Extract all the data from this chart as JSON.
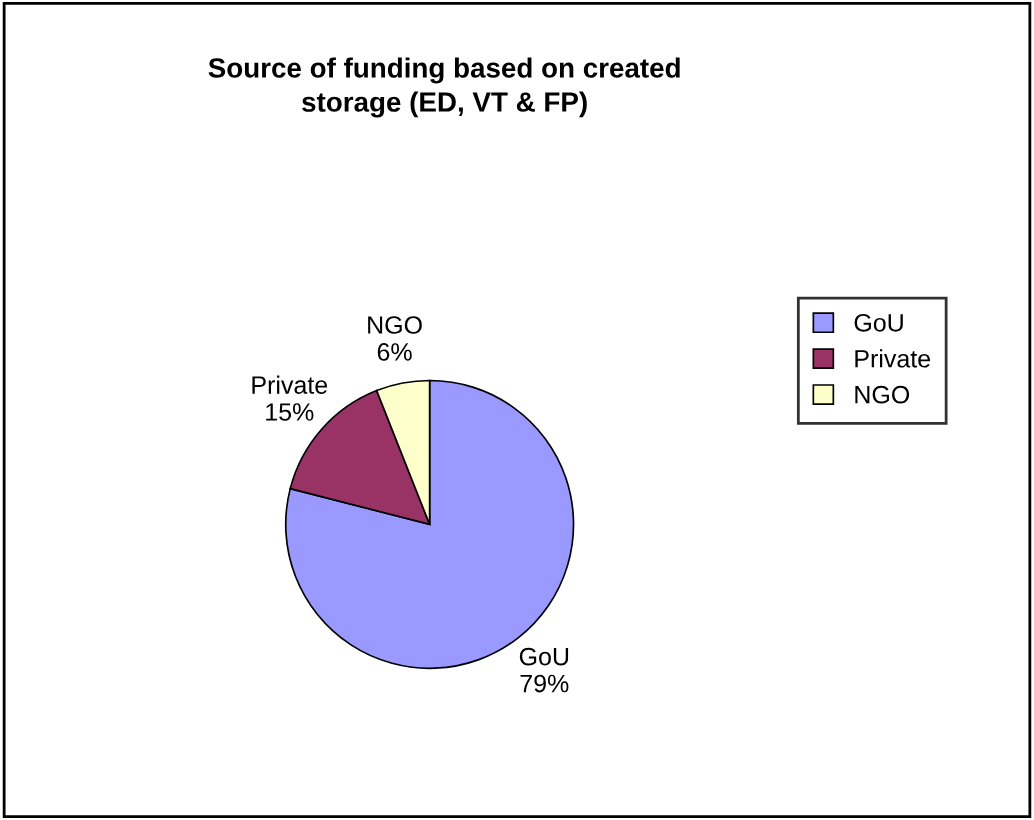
{
  "chart_data": {
    "type": "pie",
    "title": "Source of funding based on created\nstorage (ED, VT & FP)",
    "categories": [
      "GoU",
      "Private",
      "NGO"
    ],
    "values": [
      79,
      15,
      6
    ],
    "value_labels": [
      "79%",
      "15%",
      "6%"
    ],
    "colors": [
      "#9999ff",
      "#993366",
      "#ffffcc"
    ],
    "legend": "right"
  }
}
